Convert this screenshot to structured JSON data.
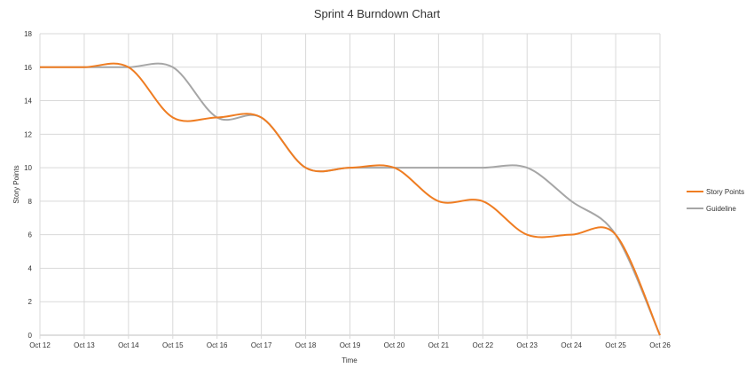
{
  "chart_data": {
    "type": "line",
    "title": "Sprint 4 Burndown Chart",
    "xlabel": "Time",
    "ylabel": "Story Points",
    "categories": [
      "Oct 12",
      "Oct 13",
      "Oct 14",
      "Oct 15",
      "Oct 16",
      "Oct 17",
      "Oct 18",
      "Oct 19",
      "Oct 20",
      "Oct 21",
      "Oct 22",
      "Oct 23",
      "Oct 24",
      "Oct 25",
      "Oct 26"
    ],
    "yticks": [
      "0",
      "2",
      "4",
      "6",
      "8",
      "10",
      "12",
      "14",
      "16",
      "18"
    ],
    "ylim": [
      0,
      18
    ],
    "grid": true,
    "legend_position": "right",
    "series": [
      {
        "name": "Story Points",
        "color": "#ef7d22",
        "values": [
          16,
          16,
          16,
          13,
          13,
          13,
          10,
          10,
          10,
          8,
          8,
          6,
          6,
          6,
          0
        ]
      },
      {
        "name": "Guideline",
        "color": "#a6a6a6",
        "values": [
          16,
          16,
          16,
          16,
          13,
          13,
          10,
          10,
          10,
          10,
          10,
          10,
          8,
          6,
          0
        ]
      }
    ]
  }
}
